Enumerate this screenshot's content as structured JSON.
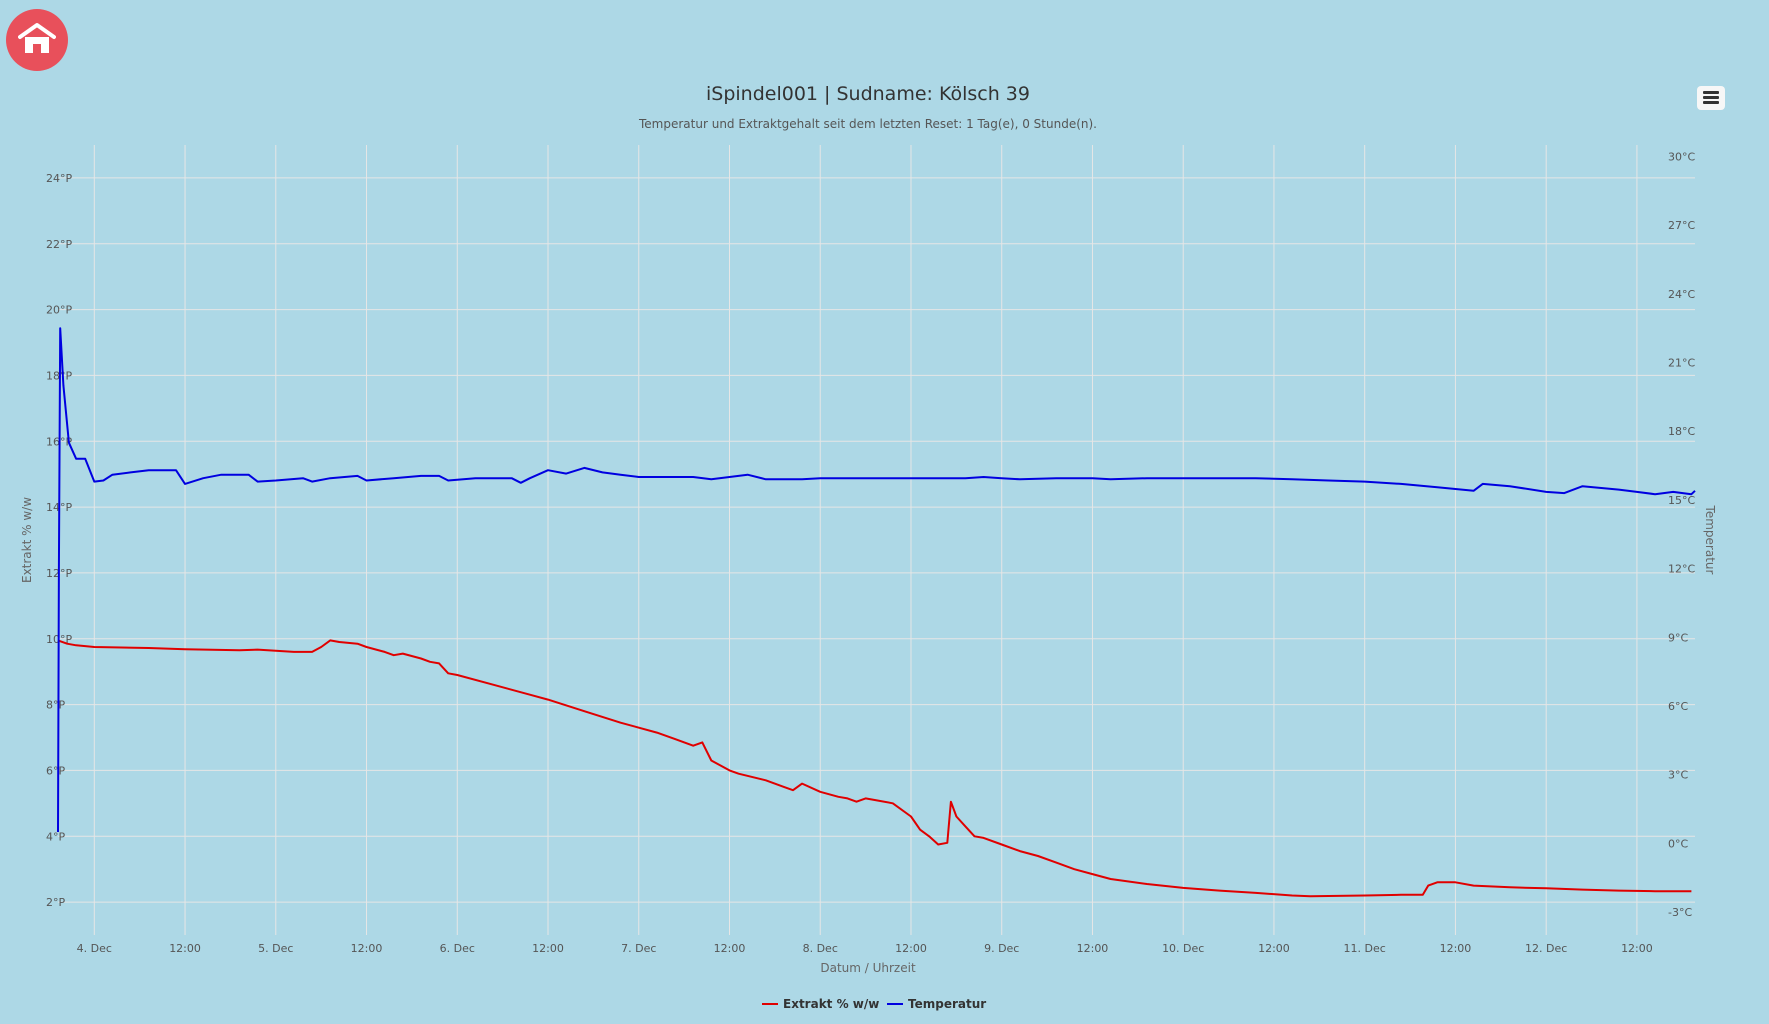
{
  "nav": {
    "home_icon": "home-icon"
  },
  "menu": {
    "icon": "hamburger-menu-icon"
  },
  "chart_data": {
    "type": "line",
    "title": "iSpindel001 | Sudname: Kölsch 39",
    "subtitle": "Temperatur und Extraktgehalt seit dem letzten Reset: 1 Tag(e), 0 Stunde(n).",
    "xlabel": "Datum / Uhrzeit",
    "y_left_label": "Extrakt % w/w",
    "y_right_label": "Temperatur",
    "x_ticks": [
      "4. Dec",
      "12:00",
      "5. Dec",
      "12:00",
      "6. Dec",
      "12:00",
      "7. Dec",
      "12:00",
      "8. Dec",
      "12:00",
      "9. Dec",
      "12:00",
      "10. Dec",
      "12:00",
      "11. Dec",
      "12:00",
      "12. Dec",
      "12:00"
    ],
    "xlim": [
      3.8,
      12.82
    ],
    "y_left_ticks": [
      "2°P",
      "4°P",
      "6°P",
      "8°P",
      "10°P",
      "12°P",
      "14°P",
      "16°P",
      "18°P",
      "20°P",
      "22°P",
      "24°P"
    ],
    "ylim_left": [
      1,
      25
    ],
    "y_right_ticks": [
      "-3°C",
      "0°C",
      "3°C",
      "6°C",
      "9°C",
      "12°C",
      "15°C",
      "18°C",
      "21°C",
      "24°C",
      "27°C",
      "30°C"
    ],
    "ylim_right": [
      -4,
      30.5
    ],
    "grid": true,
    "legend_position": "bottom-center",
    "series": [
      {
        "name": "Extrakt % w/w",
        "color": "#e00000",
        "axis": "left",
        "points": [
          [
            3.8,
            9.95
          ],
          [
            3.85,
            9.85
          ],
          [
            3.9,
            9.8
          ],
          [
            4.0,
            9.75
          ],
          [
            4.3,
            9.72
          ],
          [
            4.5,
            9.68
          ],
          [
            4.8,
            9.65
          ],
          [
            4.9,
            9.67
          ],
          [
            5.1,
            9.6
          ],
          [
            5.2,
            9.6
          ],
          [
            5.25,
            9.75
          ],
          [
            5.3,
            9.95
          ],
          [
            5.35,
            9.9
          ],
          [
            5.45,
            9.85
          ],
          [
            5.5,
            9.75
          ],
          [
            5.6,
            9.6
          ],
          [
            5.65,
            9.5
          ],
          [
            5.7,
            9.55
          ],
          [
            5.8,
            9.4
          ],
          [
            5.85,
            9.3
          ],
          [
            5.9,
            9.25
          ],
          [
            5.95,
            8.95
          ],
          [
            6.0,
            8.9
          ],
          [
            6.2,
            8.6
          ],
          [
            6.4,
            8.3
          ],
          [
            6.5,
            8.15
          ],
          [
            6.7,
            7.8
          ],
          [
            6.9,
            7.45
          ],
          [
            7.1,
            7.15
          ],
          [
            7.2,
            6.95
          ],
          [
            7.3,
            6.75
          ],
          [
            7.35,
            6.85
          ],
          [
            7.4,
            6.3
          ],
          [
            7.5,
            6.0
          ],
          [
            7.55,
            5.9
          ],
          [
            7.7,
            5.7
          ],
          [
            7.8,
            5.5
          ],
          [
            7.85,
            5.4
          ],
          [
            7.9,
            5.6
          ],
          [
            8.0,
            5.35
          ],
          [
            8.1,
            5.2
          ],
          [
            8.15,
            5.15
          ],
          [
            8.2,
            5.05
          ],
          [
            8.25,
            5.15
          ],
          [
            8.3,
            5.1
          ],
          [
            8.4,
            5.0
          ],
          [
            8.5,
            4.6
          ],
          [
            8.55,
            4.2
          ],
          [
            8.6,
            4.0
          ],
          [
            8.65,
            3.75
          ],
          [
            8.7,
            3.8
          ],
          [
            8.72,
            5.05
          ],
          [
            8.75,
            4.6
          ],
          [
            8.8,
            4.3
          ],
          [
            8.85,
            4.0
          ],
          [
            8.9,
            3.95
          ],
          [
            9.0,
            3.75
          ],
          [
            9.1,
            3.55
          ],
          [
            9.2,
            3.4
          ],
          [
            9.3,
            3.2
          ],
          [
            9.4,
            3.0
          ],
          [
            9.5,
            2.85
          ],
          [
            9.6,
            2.7
          ],
          [
            9.8,
            2.55
          ],
          [
            10.0,
            2.43
          ],
          [
            10.2,
            2.35
          ],
          [
            10.4,
            2.28
          ],
          [
            10.6,
            2.2
          ],
          [
            10.7,
            2.18
          ],
          [
            11.0,
            2.2
          ],
          [
            11.2,
            2.22
          ],
          [
            11.32,
            2.22
          ],
          [
            11.35,
            2.5
          ],
          [
            11.4,
            2.6
          ],
          [
            11.5,
            2.6
          ],
          [
            11.6,
            2.5
          ],
          [
            11.8,
            2.45
          ],
          [
            12.0,
            2.42
          ],
          [
            12.2,
            2.38
          ],
          [
            12.4,
            2.35
          ],
          [
            12.6,
            2.33
          ],
          [
            12.8,
            2.33
          ]
        ]
      },
      {
        "name": "Temperatur",
        "color": "#0000e0",
        "axis": "right",
        "points": [
          [
            3.8,
            0.5
          ],
          [
            3.805,
            12.0
          ],
          [
            3.812,
            22.5
          ],
          [
            3.83,
            20.0
          ],
          [
            3.86,
            17.5
          ],
          [
            3.9,
            16.8
          ],
          [
            3.95,
            16.8
          ],
          [
            4.0,
            15.8
          ],
          [
            4.05,
            15.85
          ],
          [
            4.1,
            16.1
          ],
          [
            4.2,
            16.2
          ],
          [
            4.3,
            16.3
          ],
          [
            4.45,
            16.3
          ],
          [
            4.5,
            15.7
          ],
          [
            4.6,
            15.95
          ],
          [
            4.7,
            16.1
          ],
          [
            4.85,
            16.1
          ],
          [
            4.9,
            15.8
          ],
          [
            5.0,
            15.85
          ],
          [
            5.15,
            15.95
          ],
          [
            5.2,
            15.8
          ],
          [
            5.3,
            15.95
          ],
          [
            5.45,
            16.05
          ],
          [
            5.5,
            15.85
          ],
          [
            5.65,
            15.95
          ],
          [
            5.8,
            16.05
          ],
          [
            5.9,
            16.05
          ],
          [
            5.95,
            15.85
          ],
          [
            6.1,
            15.95
          ],
          [
            6.3,
            15.95
          ],
          [
            6.35,
            15.75
          ],
          [
            6.4,
            15.95
          ],
          [
            6.5,
            16.3
          ],
          [
            6.6,
            16.15
          ],
          [
            6.7,
            16.4
          ],
          [
            6.8,
            16.2
          ],
          [
            6.9,
            16.1
          ],
          [
            7.0,
            16.0
          ],
          [
            7.1,
            16.0
          ],
          [
            7.3,
            16.0
          ],
          [
            7.4,
            15.9
          ],
          [
            7.5,
            16.0
          ],
          [
            7.6,
            16.1
          ],
          [
            7.7,
            15.9
          ],
          [
            7.8,
            15.9
          ],
          [
            7.9,
            15.9
          ],
          [
            8.0,
            15.95
          ],
          [
            8.15,
            15.95
          ],
          [
            8.3,
            15.95
          ],
          [
            8.4,
            15.95
          ],
          [
            8.5,
            15.95
          ],
          [
            8.6,
            15.95
          ],
          [
            8.7,
            15.95
          ],
          [
            8.8,
            15.95
          ],
          [
            8.9,
            16.0
          ],
          [
            9.0,
            15.95
          ],
          [
            9.1,
            15.9
          ],
          [
            9.3,
            15.95
          ],
          [
            9.5,
            15.95
          ],
          [
            9.6,
            15.9
          ],
          [
            9.8,
            15.95
          ],
          [
            10.0,
            15.95
          ],
          [
            10.2,
            15.95
          ],
          [
            10.4,
            15.95
          ],
          [
            10.6,
            15.9
          ],
          [
            10.8,
            15.85
          ],
          [
            11.0,
            15.8
          ],
          [
            11.2,
            15.7
          ],
          [
            11.4,
            15.55
          ],
          [
            11.6,
            15.4
          ],
          [
            11.65,
            15.7
          ],
          [
            11.8,
            15.6
          ],
          [
            12.0,
            15.35
          ],
          [
            12.1,
            15.3
          ],
          [
            12.2,
            15.6
          ],
          [
            12.4,
            15.45
          ],
          [
            12.5,
            15.35
          ],
          [
            12.6,
            15.25
          ],
          [
            12.7,
            15.35
          ],
          [
            12.8,
            15.25
          ],
          [
            12.82,
            15.4
          ]
        ]
      }
    ]
  }
}
